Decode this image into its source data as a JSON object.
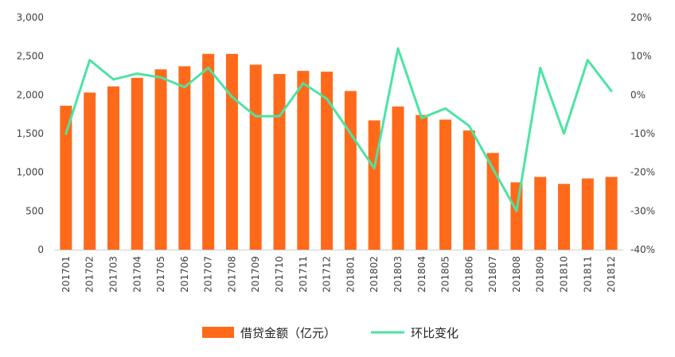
{
  "chart_data": {
    "type": "bar",
    "categories": [
      "201701",
      "201702",
      "201703",
      "201704",
      "201705",
      "201706",
      "201707",
      "201708",
      "201709",
      "201710",
      "201711",
      "201712",
      "201801",
      "201802",
      "201803",
      "201804",
      "201805",
      "201806",
      "201807",
      "201808",
      "201809",
      "201810",
      "201811",
      "201812"
    ],
    "series": [
      {
        "name": "借贷金额（亿元）",
        "type": "bar",
        "axis": "left",
        "color": "#FF6A1A",
        "values": [
          1860,
          2030,
          2110,
          2220,
          2330,
          2370,
          2530,
          2530,
          2390,
          2270,
          2310,
          2300,
          2050,
          1670,
          1850,
          1740,
          1680,
          1540,
          1250,
          870,
          940,
          850,
          920,
          940
        ]
      },
      {
        "name": "环比变化",
        "type": "line",
        "axis": "right",
        "color": "#4DE3A3",
        "values": [
          -10,
          9,
          4,
          5.5,
          4.5,
          2,
          7,
          -0.5,
          -5.5,
          -5.5,
          3,
          -1,
          -10,
          -19,
          12,
          -6,
          -3.5,
          -8,
          -19,
          -30,
          7,
          -10,
          9,
          1
        ]
      }
    ],
    "y_left": {
      "min": 0,
      "max": 3000,
      "ticks": [
        "0",
        "500",
        "1,000",
        "1,500",
        "2,000",
        "2,500",
        "3,000"
      ]
    },
    "y_right": {
      "min": -40,
      "max": 20,
      "ticks": [
        "-40%",
        "-30%",
        "-20%",
        "-10%",
        "0%",
        "10%",
        "20%"
      ]
    },
    "legend_position": "bottom",
    "grid": false
  }
}
